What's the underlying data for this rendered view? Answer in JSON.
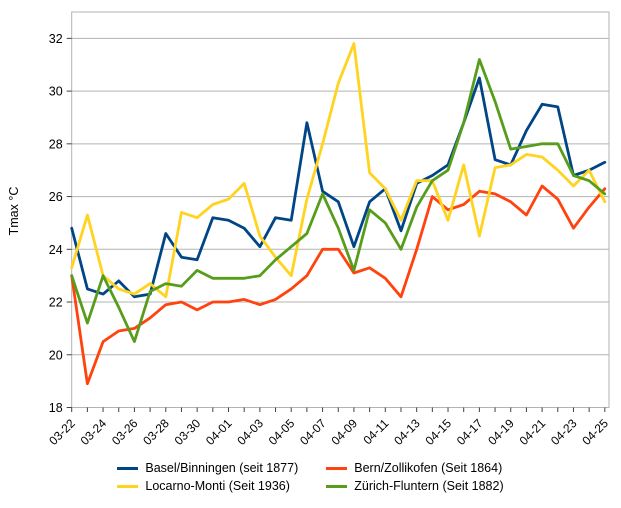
{
  "chart_data": {
    "type": "line",
    "title": "",
    "ylabel": "Tmax °C",
    "xlabel": "",
    "ylim": [
      18,
      33
    ],
    "yticks": [
      18,
      20,
      22,
      24,
      26,
      28,
      30,
      32
    ],
    "grid": "horizontal",
    "legend_position": "bottom-center",
    "x_tick_label_every": 2,
    "x_labels": [
      "03-22",
      "03-23",
      "03-24",
      "03-25",
      "03-26",
      "03-27",
      "03-28",
      "03-29",
      "03-30",
      "03-31",
      "04-01",
      "04-02",
      "04-03",
      "04-04",
      "04-05",
      "04-06",
      "04-07",
      "04-08",
      "04-09",
      "04-10",
      "04-11",
      "04-12",
      "04-13",
      "04-14",
      "04-15",
      "04-16",
      "04-17",
      "04-18",
      "04-19",
      "04-20",
      "04-21",
      "04-22",
      "04-23",
      "04-24",
      "04-25"
    ],
    "series": [
      {
        "name": "Basel/Binningen (seit 1877)",
        "color": "#004586",
        "values": [
          24.8,
          22.5,
          22.3,
          22.8,
          22.2,
          22.3,
          24.6,
          23.7,
          23.6,
          25.2,
          25.1,
          24.8,
          24.1,
          25.2,
          25.1,
          28.8,
          26.2,
          25.8,
          24.1,
          25.8,
          26.3,
          24.7,
          26.5,
          26.8,
          27.2,
          28.8,
          30.5,
          27.4,
          27.2,
          28.5,
          29.5,
          29.4,
          26.8,
          27.0,
          27.3
        ]
      },
      {
        "name": "Bern/Zollikofen (Seit 1864)",
        "color": "#FF420E",
        "values": [
          23.0,
          18.9,
          20.5,
          20.9,
          21.0,
          21.4,
          21.9,
          22.0,
          21.7,
          22.0,
          22.0,
          22.1,
          21.9,
          22.1,
          22.5,
          23.0,
          24.0,
          24.0,
          23.1,
          23.3,
          22.9,
          22.2,
          24.0,
          26.0,
          25.5,
          25.7,
          26.2,
          26.1,
          25.8,
          25.3,
          26.4,
          25.9,
          24.8,
          25.6,
          26.3
        ]
      },
      {
        "name": "Locarno-Monti (Seit 1936)",
        "color": "#FFD320",
        "values": [
          23.3,
          25.3,
          23.0,
          22.5,
          22.3,
          22.7,
          22.2,
          25.4,
          25.2,
          25.7,
          25.9,
          26.5,
          24.5,
          23.7,
          23.0,
          25.9,
          28.0,
          30.3,
          31.8,
          26.9,
          26.3,
          25.1,
          26.6,
          26.6,
          25.1,
          27.2,
          24.5,
          27.1,
          27.2,
          27.6,
          27.5,
          27.0,
          26.4,
          27.0,
          25.8
        ]
      },
      {
        "name": "Zürich-Fluntern (Seit 1882)",
        "color": "#579D1C",
        "values": [
          23.0,
          21.2,
          23.0,
          21.8,
          20.5,
          22.4,
          22.7,
          22.6,
          23.2,
          22.9,
          22.9,
          22.9,
          23.0,
          23.6,
          24.1,
          24.6,
          26.1,
          24.8,
          23.2,
          25.5,
          25.0,
          24.0,
          25.6,
          26.6,
          27.0,
          28.8,
          31.2,
          29.6,
          27.8,
          27.9,
          28.0,
          28.0,
          26.8,
          26.6,
          26.1
        ]
      }
    ],
    "style": {
      "grid_color": "#b3b3b3",
      "border_color": "#b3b3b3",
      "tick_color": "#404040",
      "text_color": "#000000",
      "line_width": 2.8
    }
  }
}
